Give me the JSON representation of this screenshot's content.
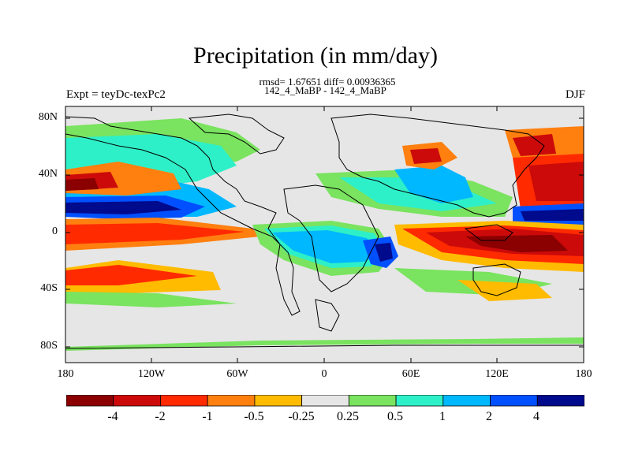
{
  "title": "Precipitation (in mm/day)",
  "stats": "rmsd= 1.67651 diff= 0.00936365",
  "cases": "142_4_MaBP - 142_4_MaBP",
  "expt": "Expt = teyDc-texPc2",
  "season": "DJF",
  "lat_labels": [
    "80N",
    "40N",
    "0",
    "40S",
    "80S"
  ],
  "lon_labels": [
    "180",
    "120W",
    "60W",
    "0",
    "60E",
    "120E",
    "180"
  ],
  "colorbar": {
    "labels": [
      "-4",
      "-2",
      "-1",
      "-0.5",
      "-0.25",
      "0.25",
      "0.5",
      "1",
      "2",
      "4"
    ],
    "colors": [
      "#8b0000",
      "#cc0a0a",
      "#ff2a00",
      "#ff7f0f",
      "#ffbb00",
      "#e6e6e6",
      "#7ae35f",
      "#2ef0c8",
      "#00b8ff",
      "#0050ff",
      "#000a8c"
    ]
  }
}
